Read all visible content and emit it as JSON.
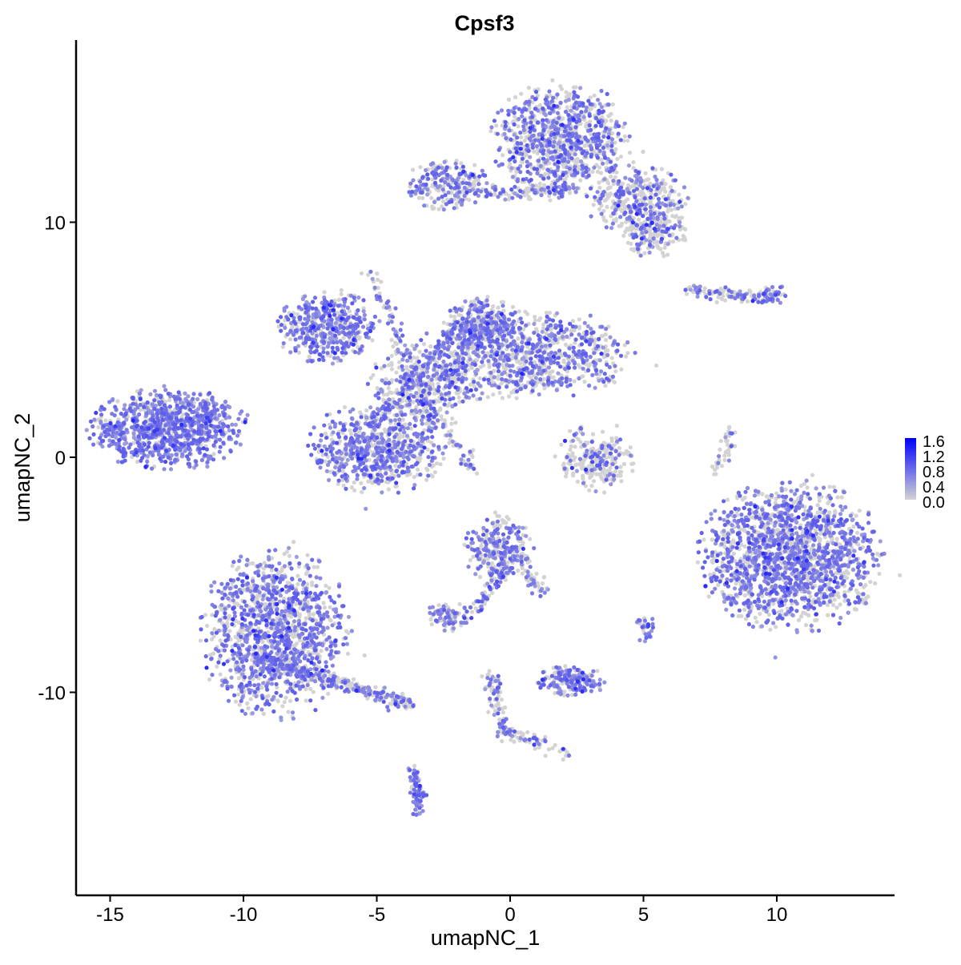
{
  "chart_data": {
    "type": "scatter",
    "title": "Cpsf3",
    "xlabel": "umapNC_1",
    "ylabel": "umapNC_2",
    "xlim": [
      -16.5,
      14.5
    ],
    "ylim": [
      -18.3,
      17.8
    ],
    "xticks": [
      -15,
      -10,
      -5,
      0,
      5,
      10
    ],
    "yticks": [
      -10,
      0,
      10
    ],
    "xtick_labels": [
      "-15",
      "-10",
      "-5",
      "0",
      "5",
      "10"
    ],
    "ytick_labels": [
      "-10",
      "0",
      "10"
    ],
    "grid": false,
    "legend": {
      "placement": "right",
      "type": "colorbar",
      "min": 0.0,
      "max": 1.6,
      "tick_labels": [
        "1.6",
        "1.2",
        "0.8",
        "0.4",
        "0.0"
      ],
      "low_color": "#D3D3D3",
      "high_color": "#0000FF"
    },
    "clusters": [
      {
        "x": -12.8,
        "y": 1.2,
        "sx": 1.4,
        "sy": 0.8,
        "n": 900,
        "expr_fraction": 0.8
      },
      {
        "x": -8.8,
        "y": -7.5,
        "sx": 1.3,
        "sy": 1.7,
        "n": 1300,
        "expr_fraction": 0.6
      },
      {
        "x": -5.0,
        "y": 0.4,
        "sx": 1.2,
        "sy": 0.9,
        "n": 700,
        "expr_fraction": 0.6
      },
      {
        "x": -6.8,
        "y": 5.5,
        "sx": 0.9,
        "sy": 0.7,
        "n": 450,
        "expr_fraction": 0.7
      },
      {
        "x": 0.6,
        "y": 4.4,
        "sx": 1.9,
        "sy": 0.9,
        "n": 900,
        "expr_fraction": 0.5
      },
      {
        "x": -1.1,
        "y": 5.6,
        "sx": 0.7,
        "sy": 0.6,
        "n": 300,
        "expr_fraction": 0.6
      },
      {
        "x": -3.2,
        "y": 3.0,
        "sx": 1.0,
        "sy": 0.8,
        "n": 400,
        "expr_fraction": 0.4
      },
      {
        "x": 1.9,
        "y": 13.6,
        "sx": 1.2,
        "sy": 1.1,
        "n": 900,
        "expr_fraction": 0.5
      },
      {
        "x": -2.3,
        "y": 11.6,
        "sx": 0.8,
        "sy": 0.5,
        "n": 250,
        "expr_fraction": 0.5
      },
      {
        "x": 4.8,
        "y": 11.0,
        "sx": 0.9,
        "sy": 0.7,
        "n": 350,
        "expr_fraction": 0.4
      },
      {
        "x": 5.3,
        "y": 9.6,
        "sx": 0.6,
        "sy": 0.5,
        "n": 200,
        "expr_fraction": 0.3
      },
      {
        "x": 10.5,
        "y": -4.2,
        "sx": 1.6,
        "sy": 1.5,
        "n": 2200,
        "expr_fraction": 0.6
      },
      {
        "x": 3.2,
        "y": -0.2,
        "sx": 0.7,
        "sy": 0.6,
        "n": 220,
        "expr_fraction": 0.2
      },
      {
        "x": -0.4,
        "y": -3.9,
        "sx": 0.6,
        "sy": 0.7,
        "n": 280,
        "expr_fraction": 0.5
      },
      {
        "x": 2.3,
        "y": -9.5,
        "sx": 0.6,
        "sy": 0.3,
        "n": 180,
        "expr_fraction": 0.7
      },
      {
        "x": -2.3,
        "y": -6.8,
        "sx": 0.4,
        "sy": 0.3,
        "n": 90,
        "expr_fraction": 0.5
      },
      {
        "x": 5.1,
        "y": -7.3,
        "sx": 0.2,
        "sy": 0.3,
        "n": 30,
        "expr_fraction": 0.6
      },
      {
        "x": 9.8,
        "y": 6.9,
        "sx": 0.3,
        "sy": 0.2,
        "n": 50,
        "expr_fraction": 0.7
      }
    ],
    "trails": [
      {
        "from": [
          -9.5,
          -8.5
        ],
        "to": [
          -3.7,
          -10.5
        ],
        "n": 300,
        "expr_fraction": 0.5
      },
      {
        "from": [
          -3.6,
          -13.3
        ],
        "to": [
          -3.4,
          -15.2
        ],
        "n": 80,
        "expr_fraction": 0.7
      },
      {
        "from": [
          -5.3,
          8.0
        ],
        "to": [
          -3.0,
          2.0
        ],
        "n": 100,
        "expr_fraction": 0.5
      },
      {
        "from": [
          -3.5,
          2.5
        ],
        "to": [
          -1.2,
          -0.6
        ],
        "n": 70,
        "expr_fraction": 0.4
      },
      {
        "from": [
          -5.0,
          1.5
        ],
        "to": [
          -2.0,
          5.5
        ],
        "n": 120,
        "expr_fraction": 0.5
      },
      {
        "from": [
          -0.8,
          11.2
        ],
        "to": [
          2.5,
          11.4
        ],
        "n": 120,
        "expr_fraction": 0.4
      },
      {
        "from": [
          -0.3,
          -5.0
        ],
        "to": [
          -1.3,
          -6.5
        ],
        "n": 50,
        "expr_fraction": 0.5
      },
      {
        "from": [
          0.6,
          -5.0
        ],
        "to": [
          1.3,
          -5.8
        ],
        "n": 40,
        "expr_fraction": 0.4
      },
      {
        "from": [
          -0.7,
          -9.3
        ],
        "to": [
          -0.2,
          -12.0
        ],
        "n": 90,
        "expr_fraction": 0.4
      },
      {
        "from": [
          -0.2,
          -11.6
        ],
        "to": [
          2.4,
          -12.7
        ],
        "n": 60,
        "expr_fraction": 0.3
      },
      {
        "from": [
          6.6,
          7.1
        ],
        "to": [
          9.6,
          6.8
        ],
        "n": 90,
        "expr_fraction": 0.4
      },
      {
        "from": [
          8.3,
          1.2
        ],
        "to": [
          7.8,
          -0.6
        ],
        "n": 40,
        "expr_fraction": 0.3
      },
      {
        "from": [
          -11.5,
          2.7
        ],
        "to": [
          -11.3,
          1.5
        ],
        "n": 40,
        "expr_fraction": 0.6
      },
      {
        "from": [
          2.5,
          1.2
        ],
        "to": [
          3.2,
          -0.8
        ],
        "n": 40,
        "expr_fraction": 0.3
      }
    ]
  }
}
